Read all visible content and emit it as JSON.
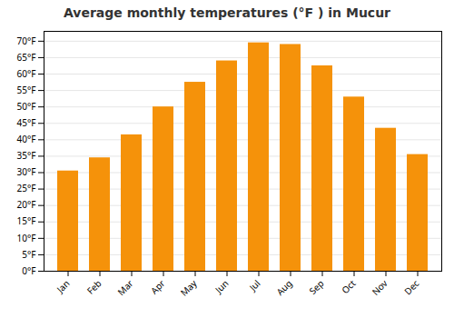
{
  "chart_data": {
    "type": "bar",
    "title": "Average monthly temperatures (°F ) in Mucur",
    "categories": [
      "Jan",
      "Feb",
      "Mar",
      "Apr",
      "May",
      "Jun",
      "Jul",
      "Aug",
      "Sep",
      "Oct",
      "Nov",
      "Dec"
    ],
    "values": [
      30.5,
      34.5,
      41.5,
      50.0,
      57.5,
      64.0,
      69.5,
      69.0,
      62.5,
      53.0,
      43.5,
      35.5
    ],
    "color": "#F5920A",
    "ylim": [
      0,
      73
    ],
    "yticks": [
      {
        "value": 0,
        "label": "0°F"
      },
      {
        "value": 5,
        "label": "5°F"
      },
      {
        "value": 10,
        "label": "10°F"
      },
      {
        "value": 15,
        "label": "15°F"
      },
      {
        "value": 20,
        "label": "20°F"
      },
      {
        "value": 25,
        "label": "25°F"
      },
      {
        "value": 30,
        "label": "30°F"
      },
      {
        "value": 35,
        "label": "35°F"
      },
      {
        "value": 40,
        "label": "40°F"
      },
      {
        "value": 45,
        "label": "45°F"
      },
      {
        "value": 50,
        "label": "50°F"
      },
      {
        "value": 55,
        "label": "55°F"
      },
      {
        "value": 60,
        "label": "60°F"
      },
      {
        "value": 65,
        "label": "65°F"
      },
      {
        "value": 70,
        "label": "70°F"
      }
    ],
    "grid": true
  }
}
